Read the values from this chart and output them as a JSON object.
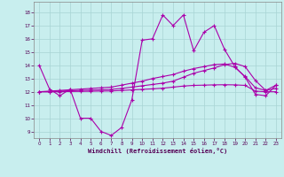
{
  "xlabel": "Windchill (Refroidissement éolien,°C)",
  "background_color": "#c8eeee",
  "grid_color": "#a8d4d4",
  "line_color": "#aa00aa",
  "ylim": [
    8.5,
    18.8
  ],
  "xlim": [
    -0.5,
    23.5
  ],
  "yticks": [
    9,
    10,
    11,
    12,
    13,
    14,
    15,
    16,
    17,
    18
  ],
  "xticks": [
    0,
    1,
    2,
    3,
    4,
    5,
    6,
    7,
    8,
    9,
    10,
    11,
    12,
    13,
    14,
    15,
    16,
    17,
    18,
    19,
    20,
    21,
    22,
    23
  ],
  "series1_x": [
    0,
    1,
    2,
    3,
    4,
    5,
    6,
    7,
    8,
    9,
    10,
    11,
    12,
    13,
    14,
    15,
    16,
    17,
    18,
    19,
    20,
    21,
    22,
    23
  ],
  "series1_y": [
    14.0,
    12.2,
    11.7,
    12.2,
    10.0,
    10.0,
    9.0,
    8.7,
    9.3,
    11.4,
    15.9,
    16.0,
    17.8,
    17.0,
    17.8,
    15.1,
    16.5,
    17.0,
    15.2,
    13.9,
    13.1,
    11.8,
    11.7,
    12.5
  ],
  "series2_x": [
    0,
    1,
    2,
    3,
    4,
    5,
    6,
    7,
    8,
    9,
    10,
    11,
    12,
    13,
    14,
    15,
    16,
    17,
    18,
    19,
    20,
    21,
    22,
    23
  ],
  "series2_y": [
    12.0,
    12.05,
    12.1,
    12.15,
    12.2,
    12.25,
    12.3,
    12.35,
    12.5,
    12.65,
    12.8,
    13.0,
    13.15,
    13.3,
    13.55,
    13.75,
    13.9,
    14.05,
    14.1,
    13.85,
    13.15,
    12.3,
    12.1,
    12.5
  ],
  "series3_x": [
    0,
    1,
    2,
    3,
    4,
    5,
    6,
    7,
    8,
    9,
    10,
    11,
    12,
    13,
    14,
    15,
    16,
    17,
    18,
    19,
    20,
    21,
    22,
    23
  ],
  "series3_y": [
    12.0,
    12.0,
    12.05,
    12.08,
    12.1,
    12.12,
    12.15,
    12.18,
    12.25,
    12.35,
    12.45,
    12.55,
    12.65,
    12.8,
    13.1,
    13.4,
    13.6,
    13.8,
    14.05,
    14.15,
    13.9,
    12.85,
    12.1,
    12.25
  ],
  "series4_x": [
    0,
    1,
    2,
    3,
    4,
    5,
    6,
    7,
    8,
    9,
    10,
    11,
    12,
    13,
    14,
    15,
    16,
    17,
    18,
    19,
    20,
    21,
    22,
    23
  ],
  "series4_y": [
    12.0,
    12.0,
    12.0,
    12.02,
    12.03,
    12.04,
    12.05,
    12.06,
    12.1,
    12.14,
    12.18,
    12.22,
    12.27,
    12.35,
    12.43,
    12.48,
    12.5,
    12.52,
    12.53,
    12.52,
    12.48,
    12.05,
    12.0,
    12.0
  ]
}
